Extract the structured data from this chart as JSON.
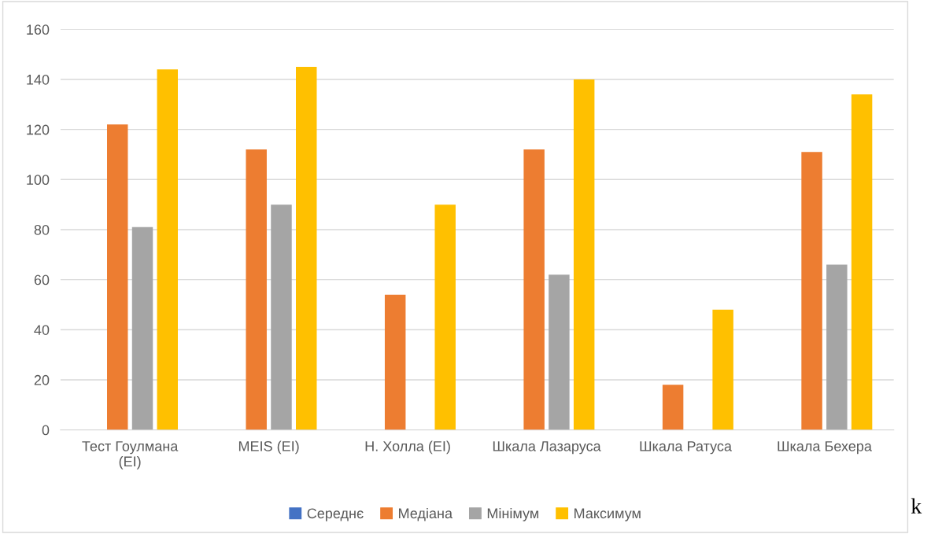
{
  "chart_data": {
    "type": "bar",
    "categories": [
      "Тест Гоулмана\n(EI)",
      "MEIS (EI)",
      "Н. Холла (EI)",
      "Шкала Лазаруса",
      "Шкала Ратуса",
      "Шкала Бехера"
    ],
    "series": [
      {
        "name": "Середнє",
        "color": "#4472c4",
        "values": [
          null,
          null,
          null,
          null,
          null,
          null
        ]
      },
      {
        "name": "Медіана",
        "color": "#ed7d31",
        "values": [
          122,
          112,
          54,
          112,
          18,
          111
        ]
      },
      {
        "name": "Мінімум",
        "color": "#a5a5a5",
        "values": [
          81,
          90,
          null,
          62,
          null,
          66
        ]
      },
      {
        "name": "Максимум",
        "color": "#ffc000",
        "values": [
          144,
          145,
          90,
          140,
          48,
          134
        ]
      }
    ],
    "ylim": [
      0,
      160
    ],
    "yticks": [
      0,
      20,
      40,
      60,
      80,
      100,
      120,
      140,
      160
    ],
    "grid": "y",
    "legend": "bottom",
    "annotations": [
      "k"
    ]
  }
}
